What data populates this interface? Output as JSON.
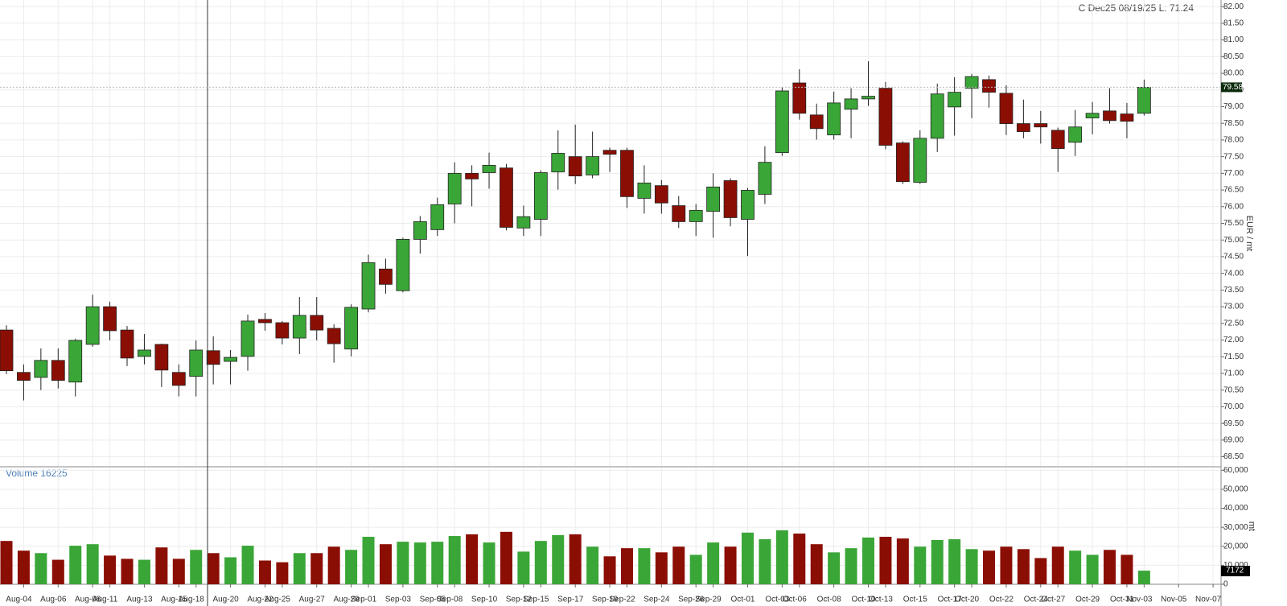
{
  "chart_data": {
    "type": "candlestick",
    "annotation": "C Dec25 08/19/25 L: 71.24",
    "ylabel": "EUR / mt",
    "up_color": "#3aa637",
    "down_color": "#8b0e04",
    "grid": true,
    "categories": [
      null,
      "Aug-04",
      null,
      "Aug-06",
      null,
      "Aug-08",
      "Aug-11",
      null,
      "Aug-13",
      null,
      "Aug-15",
      "Aug-18",
      null,
      "Aug-20",
      null,
      "Aug-22",
      "Aug-25",
      null,
      "Aug-27",
      null,
      "Aug-29",
      "Sep-01",
      null,
      "Sep-03",
      null,
      "Sep-05",
      "Sep-08",
      null,
      "Sep-10",
      null,
      "Sep-12",
      "Sep-15",
      null,
      "Sep-17",
      null,
      "Sep-19",
      "Sep-22",
      null,
      "Sep-24",
      null,
      "Sep-26",
      "Sep-29",
      null,
      "Oct-01",
      null,
      "Oct-03",
      "Oct-06",
      null,
      "Oct-08",
      null,
      "Oct-10",
      "Oct-13",
      null,
      "Oct-15",
      null,
      "Oct-17",
      "Oct-20",
      null,
      "Oct-22",
      null,
      "Oct-24",
      "Oct-27",
      null,
      "Oct-29",
      null,
      "Oct-31",
      "Nov-03",
      null,
      "Nov-05",
      null,
      "Nov-07"
    ],
    "open": [
      72.3,
      71.03,
      70.88,
      71.39,
      70.74,
      71.87,
      73.0,
      72.3,
      71.51,
      71.87,
      71.03,
      70.91,
      71.68,
      71.36,
      71.51,
      72.62,
      72.52,
      72.06,
      72.74,
      72.35,
      71.73,
      72.93,
      74.13,
      73.48,
      75.02,
      75.31,
      76.08,
      77.0,
      77.02,
      77.16,
      75.36,
      75.62,
      77.04,
      77.5,
      76.95,
      77.69,
      77.69,
      76.25,
      76.63,
      76.03,
      75.55,
      75.86,
      76.78,
      75.62,
      76.37,
      77.62,
      79.71,
      78.75,
      78.15,
      78.92,
      79.23,
      79.55,
      77.91,
      76.73,
      78.05,
      78.99,
      79.55,
      79.81,
      79.4,
      78.49,
      78.49,
      78.29,
      77.93,
      78.66,
      78.87,
      78.78,
      78.8,
      null,
      null,
      null,
      null
    ],
    "high": [
      72.44,
      71.27,
      71.75,
      71.75,
      72.04,
      73.36,
      73.15,
      72.42,
      72.18,
      71.89,
      71.27,
      71.99,
      72.11,
      71.7,
      72.76,
      72.81,
      72.57,
      73.29,
      73.29,
      72.47,
      73.07,
      74.56,
      74.44,
      75.07,
      75.72,
      76.27,
      77.33,
      77.24,
      77.62,
      77.28,
      76.03,
      77.09,
      78.29,
      78.46,
      78.25,
      77.77,
      77.77,
      77.24,
      76.8,
      76.32,
      76.08,
      77.0,
      76.85,
      76.56,
      77.81,
      79.59,
      80.12,
      79.09,
      79.45,
      79.55,
      80.36,
      79.74,
      77.96,
      78.29,
      79.69,
      79.88,
      79.98,
      79.93,
      79.64,
      79.21,
      78.87,
      78.37,
      78.9,
      79.14,
      79.55,
      79.11,
      79.81,
      null,
      null,
      null,
      null
    ],
    "low": [
      70.98,
      70.19,
      70.5,
      70.55,
      70.31,
      71.8,
      71.99,
      71.22,
      71.27,
      70.59,
      70.31,
      70.31,
      70.67,
      70.67,
      71.08,
      72.28,
      71.87,
      71.58,
      71.99,
      71.32,
      71.51,
      72.83,
      73.39,
      73.43,
      74.59,
      75.12,
      75.5,
      76.01,
      76.54,
      75.29,
      75.12,
      75.12,
      76.51,
      76.68,
      76.85,
      77.04,
      75.96,
      75.79,
      75.79,
      75.36,
      75.12,
      75.07,
      75.41,
      74.52,
      76.08,
      77.52,
      78.61,
      78.01,
      78.01,
      78.05,
      79.02,
      77.72,
      76.68,
      76.68,
      77.64,
      78.13,
      78.65,
      78.97,
      78.15,
      78.05,
      77.89,
      77.04,
      77.52,
      78.17,
      78.49,
      78.05,
      78.73,
      null,
      null,
      null,
      null
    ],
    "close": [
      71.08,
      70.79,
      71.39,
      70.79,
      71.99,
      73.0,
      72.28,
      71.46,
      71.7,
      71.1,
      70.64,
      71.7,
      71.27,
      71.48,
      72.57,
      72.52,
      72.06,
      72.74,
      72.3,
      71.89,
      72.98,
      74.32,
      73.67,
      75.02,
      75.55,
      76.06,
      77.0,
      76.83,
      77.24,
      75.38,
      75.7,
      77.02,
      77.6,
      76.92,
      77.5,
      77.57,
      76.3,
      76.71,
      76.11,
      75.55,
      75.89,
      76.59,
      75.67,
      76.49,
      77.33,
      79.47,
      78.8,
      78.34,
      79.11,
      79.23,
      79.31,
      77.84,
      76.75,
      78.05,
      79.38,
      79.43,
      79.9,
      79.43,
      78.49,
      78.25,
      78.39,
      77.74,
      78.39,
      78.8,
      78.58,
      78.56,
      79.58,
      null,
      null,
      null,
      null
    ],
    "ylim": [
      68.2,
      82.1
    ],
    "yticks": [
      {
        "value": 82,
        "label": "82.00"
      },
      {
        "value": 81.5,
        "label": "81.50"
      },
      {
        "value": 81,
        "label": "81.00"
      },
      {
        "value": 80.5,
        "label": "80.50"
      },
      {
        "value": 80,
        "label": "80.00"
      },
      {
        "value": 79.5,
        "label": "79.50"
      },
      {
        "value": 79,
        "label": "79.00"
      },
      {
        "value": 78.5,
        "label": "78.50"
      },
      {
        "value": 78,
        "label": "78.00"
      },
      {
        "value": 77.5,
        "label": "77.50"
      },
      {
        "value": 77,
        "label": "77.00"
      },
      {
        "value": 76.5,
        "label": "76.50"
      },
      {
        "value": 76,
        "label": "76.00"
      },
      {
        "value": 75.5,
        "label": "75.50"
      },
      {
        "value": 75,
        "label": "75.00"
      },
      {
        "value": 74.5,
        "label": "74.50"
      },
      {
        "value": 74,
        "label": "74.00"
      },
      {
        "value": 73.5,
        "label": "73.50"
      },
      {
        "value": 73,
        "label": "73.00"
      },
      {
        "value": 72.5,
        "label": "72.50"
      },
      {
        "value": 72,
        "label": "72.00"
      },
      {
        "value": 71.5,
        "label": "71.50"
      },
      {
        "value": 71,
        "label": "71.00"
      },
      {
        "value": 70.5,
        "label": "70.50"
      },
      {
        "value": 70,
        "label": "70.00"
      },
      {
        "value": 69.5,
        "label": "69.50"
      },
      {
        "value": 69,
        "label": "69.00"
      },
      {
        "value": 68.5,
        "label": "68.50"
      }
    ],
    "volume": {
      "title": "Volume 16225",
      "ylabel": "mt",
      "values": [
        22800,
        17700,
        16400,
        12900,
        20300,
        21100,
        15100,
        13400,
        12900,
        19400,
        13400,
        18100,
        16400,
        14200,
        20300,
        12500,
        11600,
        16400,
        16400,
        19800,
        18100,
        25000,
        21100,
        22400,
        22000,
        22400,
        25400,
        26300,
        22000,
        27600,
        17200,
        22800,
        25900,
        26300,
        19800,
        14700,
        19000,
        19000,
        16800,
        19800,
        15500,
        22000,
        19800,
        27200,
        23700,
        28400,
        26700,
        21100,
        16800,
        19000,
        24600,
        25000,
        24100,
        19800,
        23300,
        23700,
        18500,
        17700,
        19800,
        18500,
        13800,
        19800,
        17700,
        15500,
        18100,
        15500,
        7172,
        null,
        null,
        null,
        null
      ],
      "ylim": [
        0,
        61000
      ],
      "yticks": [
        0,
        {
          "value": 10000,
          "label": "10,000"
        },
        {
          "value": 20000,
          "label": "20,000"
        },
        {
          "value": 30000,
          "label": "30,000"
        },
        {
          "value": 40000,
          "label": "40,000"
        },
        {
          "value": 50000,
          "label": "50,000"
        },
        {
          "value": 60000,
          "label": "60,000"
        }
      ]
    }
  }
}
